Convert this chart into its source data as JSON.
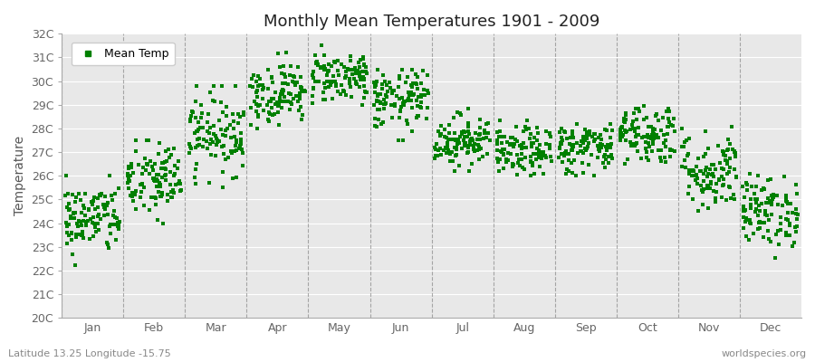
{
  "title": "Monthly Mean Temperatures 1901 - 2009",
  "ylabel": "Temperature",
  "footnote_left": "Latitude 13.25 Longitude -15.75",
  "footnote_right": "worldspecies.org",
  "legend_label": "Mean Temp",
  "dot_color": "#008000",
  "bg_color": "#ffffff",
  "plot_bg_color": "#e8e8e8",
  "ylim": [
    20,
    32
  ],
  "ytick_labels": [
    "20C",
    "21C",
    "22C",
    "23C",
    "24C",
    "25C",
    "26C",
    "27C",
    "28C",
    "29C",
    "30C",
    "31C",
    "32C"
  ],
  "ytick_values": [
    20,
    21,
    22,
    23,
    24,
    25,
    26,
    27,
    28,
    29,
    30,
    31,
    32
  ],
  "month_names": [
    "Jan",
    "Feb",
    "Mar",
    "Apr",
    "May",
    "Jun",
    "Jul",
    "Aug",
    "Sep",
    "Oct",
    "Nov",
    "Dec"
  ],
  "month_means": [
    24.2,
    25.8,
    27.8,
    29.5,
    30.2,
    29.2,
    27.5,
    27.0,
    27.2,
    27.8,
    26.2,
    24.5
  ],
  "month_stds": [
    0.75,
    0.85,
    0.85,
    0.65,
    0.55,
    0.65,
    0.55,
    0.52,
    0.55,
    0.65,
    0.85,
    0.75
  ],
  "month_mins": [
    21.0,
    23.0,
    25.5,
    28.0,
    29.0,
    27.5,
    26.2,
    26.0,
    26.0,
    26.5,
    24.5,
    22.5
  ],
  "month_maxs": [
    26.0,
    27.5,
    29.8,
    31.3,
    31.5,
    30.5,
    29.0,
    28.5,
    28.5,
    29.5,
    29.0,
    26.5
  ],
  "n_years": 109,
  "seed": 42,
  "marker_size": 5,
  "title_fontsize": 13,
  "tick_fontsize": 9,
  "ylabel_fontsize": 10
}
